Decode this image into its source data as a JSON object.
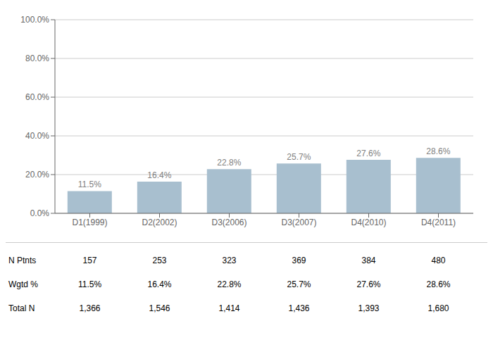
{
  "chart_data": {
    "type": "bar",
    "categories": [
      "D1(1999)",
      "D2(2002)",
      "D3(2006)",
      "D3(2007)",
      "D4(2010)",
      "D4(2011)"
    ],
    "values": [
      11.5,
      16.4,
      22.8,
      25.7,
      27.6,
      28.6
    ],
    "value_labels": [
      "11.5%",
      "16.4%",
      "22.8%",
      "25.7%",
      "27.6%",
      "28.6%"
    ],
    "data_labels": true,
    "color": "#a8bfcf",
    "ylim": [
      0,
      100
    ],
    "yticks": [
      {
        "value": 0,
        "label": "0.0%"
      },
      {
        "value": 20,
        "label": "20.0%"
      },
      {
        "value": 40,
        "label": "40.0%"
      },
      {
        "value": 60,
        "label": "60.0%"
      },
      {
        "value": 80,
        "label": "80.0%"
      },
      {
        "value": 100,
        "label": "100.0%"
      }
    ],
    "grid": true,
    "table": [
      {
        "label": "N Ptnts",
        "cells": [
          "157",
          "253",
          "323",
          "369",
          "384",
          "480"
        ]
      },
      {
        "label": "Wgtd %",
        "cells": [
          "11.5%",
          "16.4%",
          "22.8%",
          "25.7%",
          "27.6%",
          "28.6%"
        ]
      },
      {
        "label": "Total N",
        "cells": [
          "1,366",
          "1,546",
          "1,414",
          "1,436",
          "1,393",
          "1,680"
        ]
      }
    ]
  }
}
